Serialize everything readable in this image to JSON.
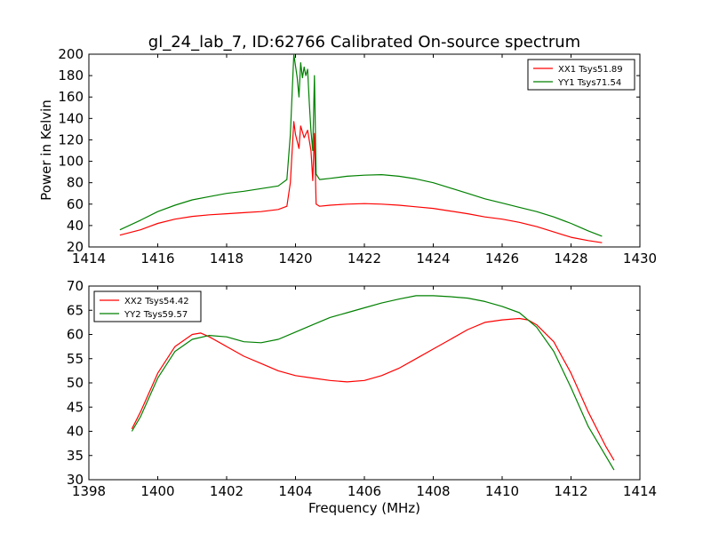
{
  "title": "gl_24_lab_7, ID:62766 Calibrated On-source spectrum",
  "chart_data": [
    {
      "type": "line",
      "ylabel": "Power in Kelvin",
      "xlabel": "",
      "xlim": [
        1414,
        1430
      ],
      "ylim": [
        20,
        200
      ],
      "xticks": [
        "1414",
        "1416",
        "1418",
        "1420",
        "1422",
        "1424",
        "1426",
        "1428",
        "1430"
      ],
      "yticks": [
        "20",
        "40",
        "60",
        "80",
        "100",
        "120",
        "140",
        "160",
        "180",
        "200"
      ],
      "legend_position": "top-right",
      "series": [
        {
          "name": "XX1 Tsys51.89",
          "color": "#ff0000",
          "x": [
            1414.9,
            1415.5,
            1416.0,
            1416.5,
            1417.0,
            1417.5,
            1418.0,
            1418.5,
            1419.0,
            1419.5,
            1419.75,
            1419.85,
            1419.95,
            1420.0,
            1420.1,
            1420.15,
            1420.25,
            1420.35,
            1420.45,
            1420.5,
            1420.55,
            1420.6,
            1420.7,
            1421.0,
            1421.5,
            1422.0,
            1422.5,
            1423.0,
            1423.5,
            1424.0,
            1424.5,
            1425.0,
            1425.5,
            1426.0,
            1426.5,
            1427.0,
            1427.5,
            1428.0,
            1428.5,
            1428.9
          ],
          "y": [
            31,
            36,
            42,
            46,
            48.5,
            50,
            51,
            52,
            53,
            55,
            58,
            80,
            137,
            125,
            112,
            133,
            122,
            129,
            110,
            82,
            126,
            60,
            58,
            59,
            60,
            60.5,
            60,
            59,
            57.5,
            56,
            53.5,
            51,
            48,
            46,
            43,
            39,
            34,
            29,
            26,
            24
          ]
        },
        {
          "name": "YY1 Tsys71.54",
          "color": "#008000",
          "x": [
            1414.9,
            1415.5,
            1416.0,
            1416.5,
            1417.0,
            1417.5,
            1418.0,
            1418.5,
            1419.0,
            1419.5,
            1419.75,
            1419.85,
            1419.95,
            1420.05,
            1420.1,
            1420.15,
            1420.2,
            1420.25,
            1420.3,
            1420.35,
            1420.4,
            1420.45,
            1420.5,
            1420.55,
            1420.6,
            1420.7,
            1421.0,
            1421.5,
            1422.0,
            1422.5,
            1423.0,
            1423.5,
            1424.0,
            1424.5,
            1425.0,
            1425.5,
            1426.0,
            1426.5,
            1427.0,
            1427.5,
            1428.0,
            1428.5,
            1428.9
          ],
          "y": [
            36,
            45,
            53,
            59,
            64,
            67,
            70,
            72,
            74.5,
            77,
            83,
            125,
            200,
            178,
            160,
            192,
            178,
            188,
            180,
            186,
            155,
            128,
            110,
            180,
            88,
            83,
            84,
            86,
            87,
            87.5,
            86,
            83.5,
            80,
            75,
            70,
            65,
            61,
            57,
            53,
            48,
            42,
            35,
            30
          ]
        }
      ]
    },
    {
      "type": "line",
      "ylabel": "",
      "xlabel": "Frequency (MHz)",
      "xlim": [
        1398,
        1414
      ],
      "ylim": [
        30,
        70
      ],
      "xticks": [
        "1398",
        "1400",
        "1402",
        "1404",
        "1406",
        "1408",
        "1410",
        "1412",
        "1414"
      ],
      "yticks": [
        "30",
        "35",
        "40",
        "45",
        "50",
        "55",
        "60",
        "65",
        "70"
      ],
      "legend_position": "top-left",
      "series": [
        {
          "name": "XX2 Tsys54.42",
          "color": "#ff0000",
          "x": [
            1399.25,
            1399.5,
            1400.0,
            1400.5,
            1401.0,
            1401.25,
            1401.5,
            1402.0,
            1402.5,
            1403.0,
            1403.5,
            1404.0,
            1404.5,
            1405.0,
            1405.5,
            1406.0,
            1406.5,
            1407.0,
            1407.5,
            1408.0,
            1408.5,
            1409.0,
            1409.5,
            1410.0,
            1410.5,
            1410.75,
            1411.0,
            1411.5,
            1412.0,
            1412.5,
            1413.0,
            1413.25
          ],
          "y": [
            40.5,
            44,
            52,
            57.5,
            60,
            60.3,
            59.5,
            57.5,
            55.5,
            54,
            52.5,
            51.5,
            51,
            50.5,
            50.2,
            50.5,
            51.5,
            53,
            55,
            57,
            59,
            61,
            62.5,
            63,
            63.3,
            63,
            62,
            58.5,
            52,
            44,
            37,
            34
          ]
        },
        {
          "name": "YY2 Tsys59.57",
          "color": "#008000",
          "x": [
            1399.25,
            1399.5,
            1400.0,
            1400.5,
            1401.0,
            1401.5,
            1402.0,
            1402.5,
            1403.0,
            1403.5,
            1404.0,
            1404.5,
            1405.0,
            1405.5,
            1406.0,
            1406.5,
            1407.0,
            1407.5,
            1408.0,
            1408.5,
            1409.0,
            1409.5,
            1410.0,
            1410.5,
            1411.0,
            1411.5,
            1412.0,
            1412.5,
            1413.0,
            1413.25
          ],
          "y": [
            40,
            43,
            51,
            56.5,
            59,
            59.8,
            59.5,
            58.5,
            58.3,
            59,
            60.5,
            62,
            63.5,
            64.5,
            65.5,
            66.5,
            67.3,
            68,
            68,
            67.8,
            67.5,
            66.8,
            65.8,
            64.5,
            61.5,
            56.5,
            49,
            41,
            35,
            32
          ]
        }
      ]
    }
  ]
}
